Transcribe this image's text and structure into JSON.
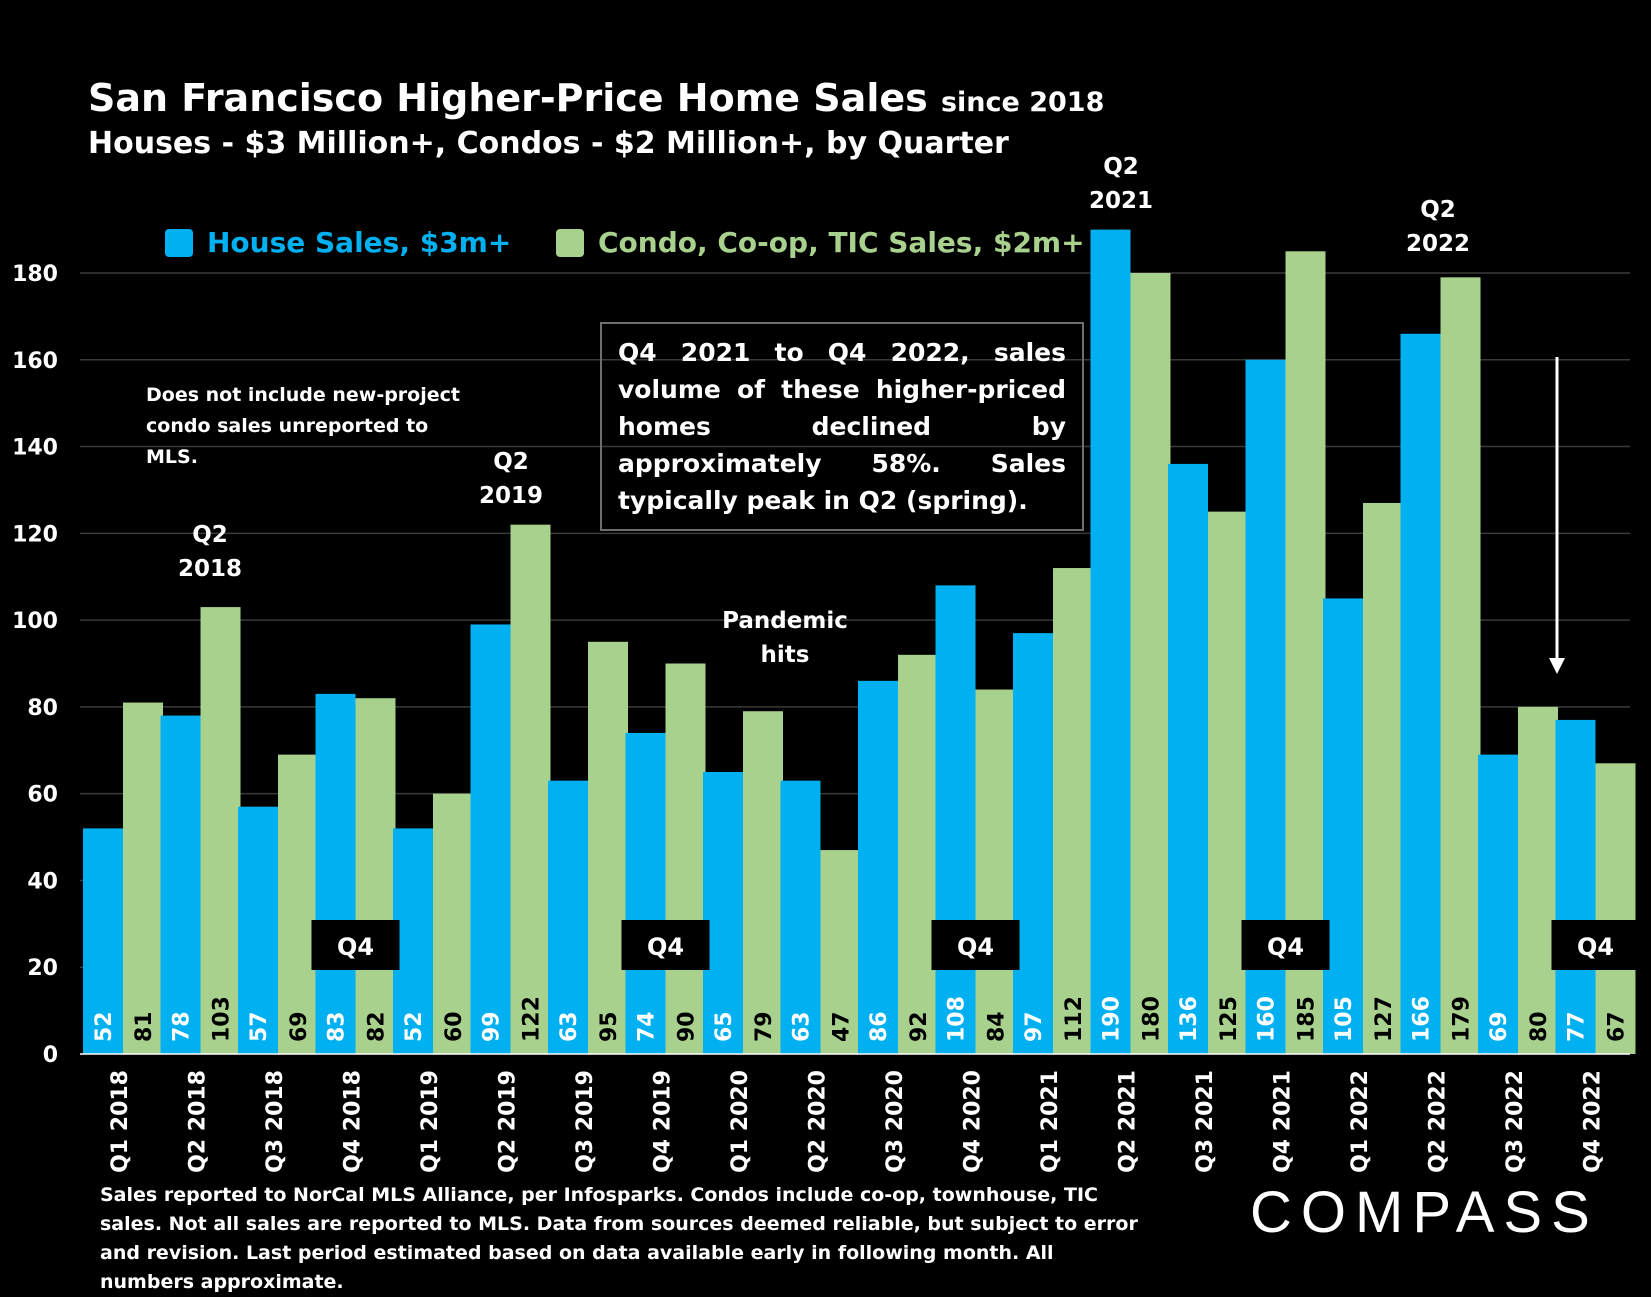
{
  "header": {
    "title": "San Francisco Higher-Price Home Sales",
    "title_suffix": "since 2018",
    "subtitle": "Houses - $3 Million+, Condos - $2 Million+, by Quarter"
  },
  "legend": {
    "house_label": "House Sales, $3m+",
    "condo_label": "Condo, Co-op, TIC Sales, $2m+"
  },
  "annotations": {
    "note_line1": "Does not include new-project",
    "note_line2": "condo sales unreported to MLS.",
    "callout": "Q4 2021 to Q4 2022, sales volume of these higher-priced homes declined by approximately 58%. Sales typically peak in Q2 (spring).",
    "pandemic_line1": "Pandemic",
    "pandemic_line2": "hits",
    "peak_2018_q": "Q2",
    "peak_2018_y": "2018",
    "peak_2019_q": "Q2",
    "peak_2019_y": "2019",
    "peak_2021_q": "Q2",
    "peak_2021_y": "2021",
    "peak_2022_q": "Q2",
    "peak_2022_y": "2022",
    "q4_marker": "Q4"
  },
  "footnote": "Sales reported to NorCal MLS Alliance, per Infosparks. Condos include co-op, townhouse, TIC sales. Not all sales are reported to MLS. Data from sources deemed reliable, but subject to error and revision. Last period estimated based on data available early in following month. All numbers  approximate.",
  "logo": "COMPASS",
  "colors": {
    "house": "#00b0f0",
    "condo": "#a9d18e",
    "background": "#000000",
    "grid": "#3a3a3a"
  },
  "chart_data": {
    "type": "bar",
    "categories": [
      "Q1 2018",
      "Q2 2018",
      "Q3 2018",
      "Q4 2018",
      "Q1 2019",
      "Q2 2019",
      "Q3 2019",
      "Q4 2019",
      "Q1 2020",
      "Q2 2020",
      "Q3 2020",
      "Q4 2020",
      "Q1 2021",
      "Q2 2021",
      "Q3 2021",
      "Q4 2021",
      "Q1 2022",
      "Q2 2022",
      "Q3 2022",
      "Q4 2022"
    ],
    "series": [
      {
        "name": "House Sales, $3m+",
        "values": [
          52,
          78,
          57,
          83,
          52,
          99,
          63,
          74,
          65,
          63,
          86,
          108,
          97,
          190,
          136,
          160,
          105,
          166,
          69,
          77
        ]
      },
      {
        "name": "Condo, Co-op, TIC Sales, $2m+",
        "values": [
          81,
          103,
          69,
          82,
          60,
          122,
          95,
          90,
          79,
          47,
          92,
          84,
          112,
          180,
          125,
          185,
          127,
          179,
          80,
          67
        ]
      }
    ],
    "yticks": [
      0,
      20,
      40,
      60,
      80,
      100,
      120,
      140,
      160,
      180
    ],
    "ylim": [
      0,
      190
    ],
    "grid": true,
    "legend_position": "top-left"
  }
}
